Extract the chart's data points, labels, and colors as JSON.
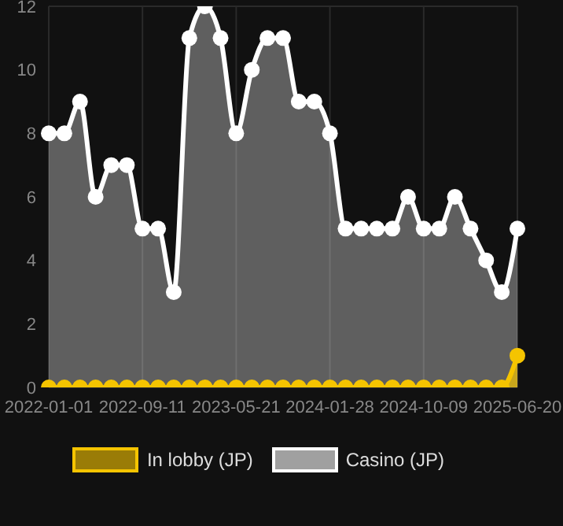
{
  "chart_data": {
    "type": "area",
    "categories": [
      "2022-01-01",
      null,
      null,
      null,
      null,
      null,
      "2022-09-11",
      null,
      null,
      null,
      null,
      null,
      "2023-05-21",
      null,
      null,
      null,
      null,
      null,
      "2024-01-28",
      null,
      null,
      null,
      null,
      null,
      "2024-10-09",
      null,
      null,
      null,
      null,
      null,
      "2025-06-20"
    ],
    "series": [
      {
        "name": "In lobby (JP)",
        "color": "#f5c400",
        "values": [
          0,
          0,
          0,
          0,
          0,
          0,
          0,
          0,
          0,
          0,
          0,
          0,
          0,
          0,
          0,
          0,
          0,
          0,
          0,
          0,
          0,
          0,
          0,
          0,
          0,
          0,
          0,
          0,
          0,
          0,
          1
        ]
      },
      {
        "name": "Casino (JP)",
        "color": "#ffffff",
        "values": [
          8,
          8,
          9,
          6,
          7,
          7,
          5,
          5,
          3,
          11,
          12,
          11,
          8,
          10,
          11,
          11,
          9,
          9,
          8,
          5,
          5,
          5,
          5,
          6,
          5,
          5,
          6,
          5,
          4,
          3,
          5
        ]
      }
    ],
    "ylim": [
      0,
      12
    ],
    "yticks": [
      0,
      2,
      4,
      6,
      8,
      10,
      12
    ],
    "grid": true,
    "legend": "bottom",
    "marker": "circle",
    "line_style": "solid"
  }
}
